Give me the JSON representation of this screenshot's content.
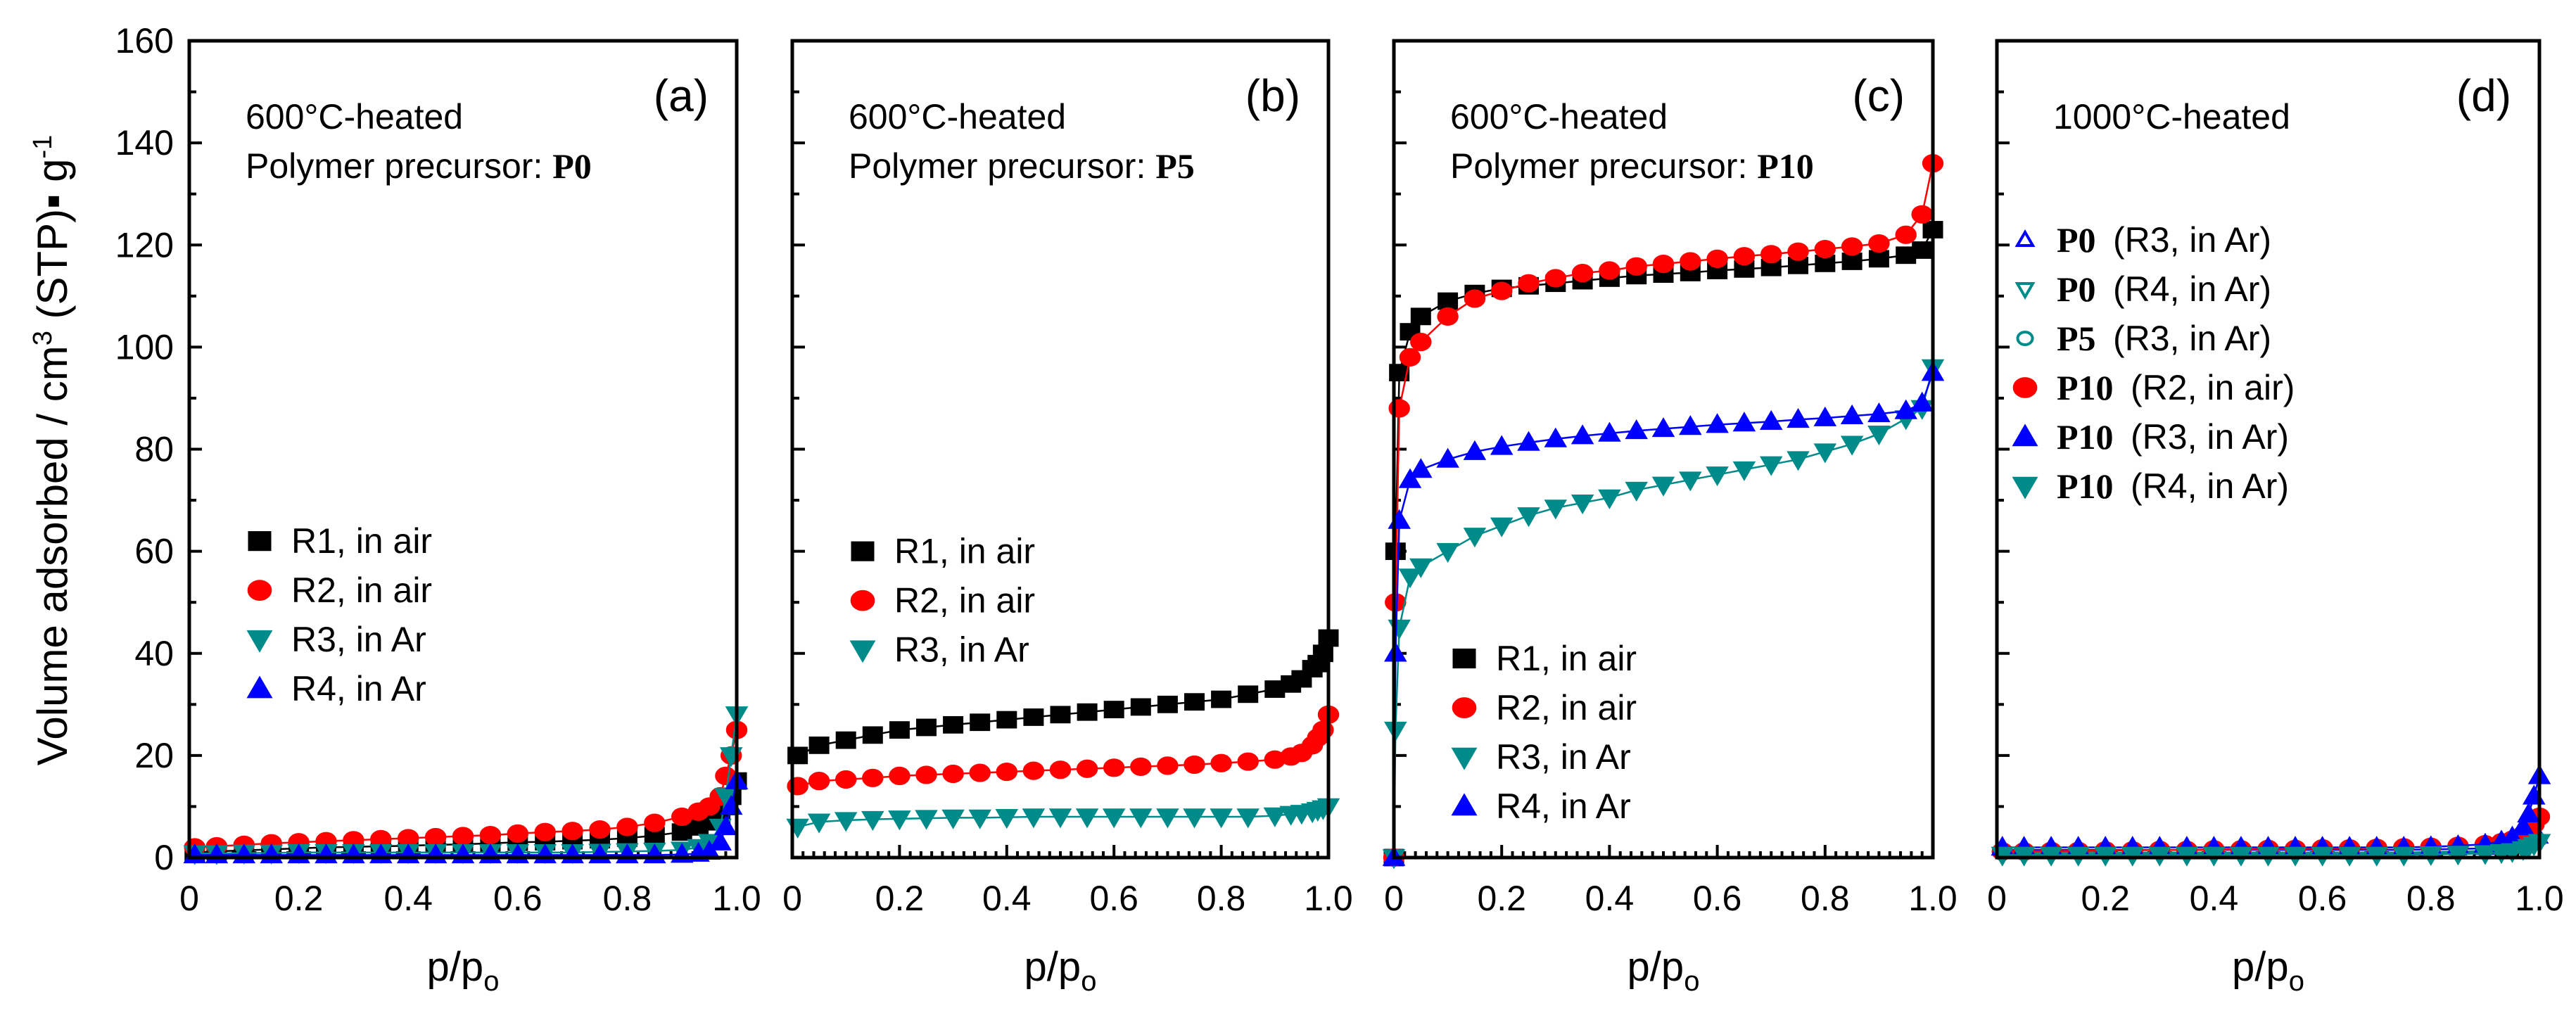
{
  "colors": {
    "black": "#000000",
    "red": "#ff0000",
    "teal": "#008b8b",
    "blue": "#0000ff"
  },
  "y_axis_label": {
    "main": "Volume adsorbed / cm",
    "sup": "3",
    "rest": " (STP)▪ g",
    "sup2": "-1"
  },
  "chart_data": [
    {
      "type": "line",
      "panel_label": "(a)",
      "annotation": [
        "600°C-heated",
        "Polymer precursor: "
      ],
      "precursor": "P0",
      "xlabel": "p/p",
      "xlabel_sub": "o",
      "ylabel": "Volume adsorbed / cm3 (STP) g-1",
      "xlim": [
        0,
        1
      ],
      "ylim": [
        0,
        160
      ],
      "xticks": [
        "0",
        "0.2",
        "0.4",
        "0.6",
        "0.8",
        "1.0"
      ],
      "yticks": [
        "0",
        "20",
        "40",
        "60",
        "80",
        "100",
        "120",
        "140",
        "160"
      ],
      "x": [
        0.01,
        0.05,
        0.1,
        0.15,
        0.2,
        0.25,
        0.3,
        0.35,
        0.4,
        0.45,
        0.5,
        0.55,
        0.6,
        0.65,
        0.7,
        0.75,
        0.8,
        0.85,
        0.9,
        0.93,
        0.95,
        0.97,
        0.98,
        0.99,
        1.0
      ],
      "series": [
        {
          "name": "R1, in air",
          "color": "black",
          "marker": "square",
          "values": [
            1,
            1.2,
            1.4,
            1.6,
            1.8,
            2,
            2.1,
            2.2,
            2.3,
            2.5,
            2.6,
            2.8,
            3,
            3.1,
            3.3,
            3.5,
            3.8,
            4.3,
            5,
            6,
            7,
            8,
            10,
            12,
            15
          ]
        },
        {
          "name": "R2, in air",
          "color": "red",
          "marker": "circle",
          "values": [
            2,
            2.2,
            2.5,
            2.8,
            3,
            3.2,
            3.4,
            3.6,
            3.8,
            4,
            4.2,
            4.4,
            4.7,
            5,
            5.2,
            5.5,
            6,
            6.8,
            8,
            9,
            10,
            12,
            16,
            20,
            25
          ]
        },
        {
          "name": "R3, in Ar",
          "color": "teal",
          "marker": "tri-down",
          "values": [
            0.8,
            0.8,
            0.9,
            0.9,
            1,
            1,
            1,
            1,
            1,
            1,
            1,
            1,
            1,
            1,
            1,
            1.1,
            1.2,
            1.3,
            1.5,
            2,
            3,
            6,
            12,
            20,
            28
          ]
        },
        {
          "name": "R4, in Ar",
          "color": "blue",
          "marker": "tri-up",
          "values": [
            0.5,
            0.5,
            0.5,
            0.5,
            0.5,
            0.5,
            0.5,
            0.5,
            0.5,
            0.5,
            0.5,
            0.5,
            0.5,
            0.5,
            0.5,
            0.5,
            0.5,
            0.5,
            0.6,
            0.8,
            1.2,
            3,
            6,
            10,
            15
          ]
        }
      ],
      "legend": "center-left"
    },
    {
      "type": "line",
      "panel_label": "(b)",
      "annotation": [
        "600°C-heated",
        "Polymer precursor: "
      ],
      "precursor": "P5",
      "xlabel": "p/p",
      "xlabel_sub": "o",
      "xlim": [
        0,
        1
      ],
      "ylim": [
        0,
        160
      ],
      "xticks": [
        "0",
        "0.2",
        "0.4",
        "0.6",
        "0.8",
        "1.0"
      ],
      "x": [
        0.01,
        0.05,
        0.1,
        0.15,
        0.2,
        0.25,
        0.3,
        0.35,
        0.4,
        0.45,
        0.5,
        0.55,
        0.6,
        0.65,
        0.7,
        0.75,
        0.8,
        0.85,
        0.9,
        0.93,
        0.95,
        0.97,
        0.98,
        0.99,
        1.0
      ],
      "series": [
        {
          "name": "R1, in air",
          "color": "black",
          "marker": "square",
          "values": [
            20,
            22,
            23,
            24,
            25,
            25.5,
            26,
            26.5,
            27,
            27.5,
            28,
            28.5,
            29,
            29.5,
            30,
            30.5,
            31,
            32,
            33,
            34,
            35,
            37,
            38,
            40,
            43
          ]
        },
        {
          "name": "R2, in air",
          "color": "red",
          "marker": "circle",
          "values": [
            14,
            15,
            15.3,
            15.6,
            16,
            16.2,
            16.4,
            16.6,
            16.8,
            17,
            17.2,
            17.4,
            17.6,
            17.8,
            18,
            18.2,
            18.5,
            18.8,
            19.2,
            19.8,
            20.5,
            22,
            23.5,
            25,
            28
          ]
        },
        {
          "name": "R3, in Ar",
          "color": "teal",
          "marker": "tri-down",
          "values": [
            6,
            7,
            7.3,
            7.5,
            7.6,
            7.7,
            7.8,
            7.8,
            7.9,
            8,
            8,
            8,
            8,
            8,
            8,
            8,
            8,
            8,
            8.2,
            8.5,
            8.7,
            9,
            9.3,
            9.6,
            10
          ]
        }
      ],
      "legend": "center-left"
    },
    {
      "type": "line",
      "panel_label": "(c)",
      "annotation": [
        "600°C-heated",
        "Polymer precursor: "
      ],
      "precursor": "P10",
      "xlabel": "p/p",
      "xlabel_sub": "o",
      "xlim": [
        0,
        1
      ],
      "ylim": [
        0,
        160
      ],
      "xticks": [
        "0",
        "0.2",
        "0.4",
        "0.6",
        "0.8",
        "1.0"
      ],
      "x": [
        0.0,
        0.003,
        0.01,
        0.03,
        0.05,
        0.1,
        0.15,
        0.2,
        0.25,
        0.3,
        0.35,
        0.4,
        0.45,
        0.5,
        0.55,
        0.6,
        0.65,
        0.7,
        0.75,
        0.8,
        0.85,
        0.9,
        0.95,
        0.98,
        1.0
      ],
      "series": [
        {
          "name": "R1, in air",
          "color": "black",
          "marker": "square",
          "values": [
            0,
            60,
            95,
            103,
            106,
            109,
            110.5,
            111.5,
            112,
            112.5,
            113,
            113.5,
            114,
            114.3,
            114.6,
            115,
            115.3,
            115.6,
            116,
            116.4,
            116.8,
            117.3,
            118,
            119,
            123
          ]
        },
        {
          "name": "R2, in air",
          "color": "red",
          "marker": "circle",
          "values": [
            0,
            50,
            88,
            98,
            101,
            106,
            109.5,
            111,
            112.5,
            113.5,
            114.5,
            115,
            115.8,
            116.3,
            116.8,
            117.3,
            117.8,
            118.2,
            118.7,
            119.2,
            119.7,
            120.3,
            122,
            126,
            136
          ]
        },
        {
          "name": "R3, in Ar",
          "color": "teal",
          "marker": "tri-down",
          "values": [
            0,
            25,
            45,
            55,
            57,
            60,
            63,
            65,
            67,
            68.5,
            69.5,
            70.5,
            72,
            73,
            74,
            75,
            76,
            77,
            78,
            79.5,
            81,
            83,
            86,
            88,
            96
          ]
        },
        {
          "name": "R4, in Ar",
          "color": "blue",
          "marker": "tri-up",
          "values": [
            0,
            40,
            66,
            74,
            76,
            78,
            79.5,
            80.5,
            81.3,
            82,
            82.6,
            83.1,
            83.6,
            84,
            84.4,
            84.8,
            85.1,
            85.4,
            85.8,
            86.1,
            86.5,
            86.9,
            87.5,
            89,
            95
          ]
        }
      ],
      "legend": "bottom-left"
    },
    {
      "type": "line",
      "panel_label": "(d)",
      "annotation": [
        "1000°C-heated"
      ],
      "precursor": "",
      "xlabel": "p/p",
      "xlabel_sub": "o",
      "xlim": [
        0,
        1
      ],
      "ylim": [
        0,
        160
      ],
      "xticks": [
        "0",
        "0.2",
        "0.4",
        "0.6",
        "0.8",
        "1.0"
      ],
      "x": [
        0.01,
        0.05,
        0.1,
        0.15,
        0.2,
        0.25,
        0.3,
        0.35,
        0.4,
        0.45,
        0.5,
        0.55,
        0.6,
        0.65,
        0.7,
        0.75,
        0.8,
        0.85,
        0.9,
        0.93,
        0.95,
        0.97,
        0.98,
        0.99,
        1.0
      ],
      "series": [
        {
          "name": "P0",
          "cond": "(R3, in Ar)",
          "color": "blue",
          "marker": "tri-up-open",
          "values": [
            1.5,
            1.5,
            1.5,
            1.5,
            1.5,
            1.5,
            1.5,
            1.5,
            1.5,
            1.5,
            1.5,
            1.5,
            1.5,
            1.5,
            1.5,
            1.5,
            1.6,
            1.7,
            1.8,
            2,
            2.2,
            2.5,
            3,
            3.5,
            4
          ]
        },
        {
          "name": "P0",
          "cond": "(R4, in Ar)",
          "color": "teal",
          "marker": "tri-down-open",
          "values": [
            0.8,
            0.8,
            0.8,
            0.8,
            0.8,
            0.8,
            0.8,
            0.8,
            0.8,
            0.8,
            0.8,
            0.8,
            0.8,
            0.8,
            0.8,
            0.8,
            0.9,
            1,
            1.1,
            1.3,
            1.5,
            1.8,
            2.2,
            2.6,
            3
          ]
        },
        {
          "name": "P5",
          "cond": "(R3, in Ar)",
          "color": "teal",
          "marker": "circle-open",
          "values": [
            1,
            1,
            1,
            1,
            1,
            1,
            1,
            1,
            1,
            1,
            1,
            1,
            1,
            1,
            1,
            1,
            1.1,
            1.2,
            1.3,
            1.5,
            1.7,
            2,
            2.4,
            2.8,
            3.5
          ]
        },
        {
          "name": "P10",
          "cond": "(R2, in air)",
          "color": "red",
          "marker": "circle",
          "values": [
            1.2,
            1.2,
            1.3,
            1.3,
            1.4,
            1.4,
            1.5,
            1.5,
            1.6,
            1.6,
            1.7,
            1.7,
            1.8,
            1.8,
            1.9,
            2,
            2.1,
            2.3,
            2.6,
            3,
            3.5,
            4.5,
            5.5,
            6.5,
            8
          ]
        },
        {
          "name": "P10",
          "cond": "(R3, in Ar)",
          "color": "blue",
          "marker": "tri-up",
          "values": [
            2,
            2,
            2,
            2,
            2,
            2,
            2,
            2,
            2,
            2,
            2,
            2,
            2,
            2,
            2,
            2,
            2.1,
            2.3,
            2.6,
            3.2,
            4,
            6,
            8.5,
            12,
            16
          ]
        },
        {
          "name": "P10",
          "cond": "(R4, in Ar)",
          "color": "teal",
          "marker": "tri-down",
          "values": [
            0.5,
            0.5,
            0.5,
            0.5,
            0.5,
            0.5,
            0.5,
            0.5,
            0.5,
            0.5,
            0.5,
            0.5,
            0.5,
            0.5,
            0.5,
            0.5,
            0.6,
            0.7,
            0.8,
            1,
            1.2,
            1.6,
            2,
            2.5,
            3
          ]
        }
      ],
      "legend": "top-left"
    }
  ]
}
